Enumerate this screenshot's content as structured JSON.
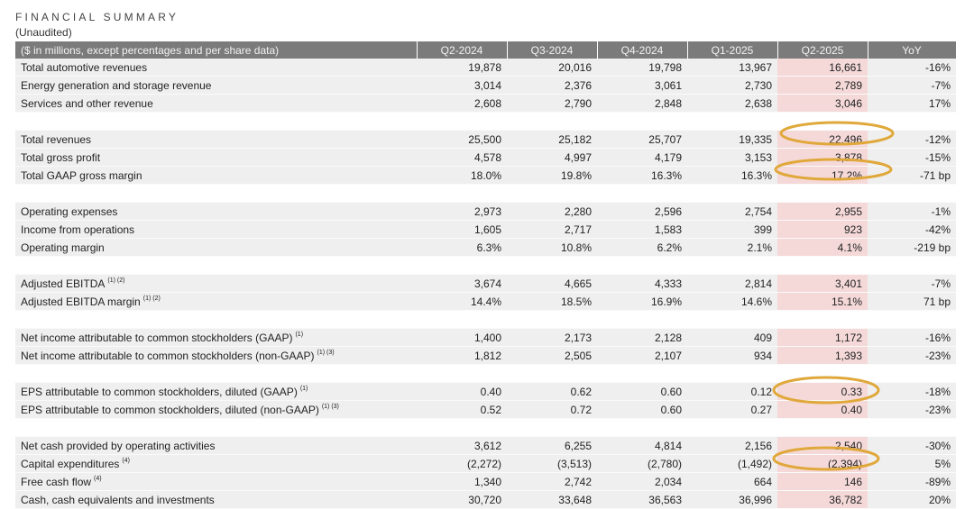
{
  "title": "FINANCIAL SUMMARY",
  "subtitle": "(Unaudited)",
  "header": [
    "($ in millions, except percentages and per share data)",
    "Q2-2024",
    "Q3-2024",
    "Q4-2024",
    "Q1-2025",
    "Q2-2025",
    "YoY"
  ],
  "highlight_color": "#f5d9d9",
  "annotation_color": "#e0a83a",
  "groups": [
    [
      {
        "label": "Total automotive revenues",
        "note": "",
        "values": [
          "19,878",
          "20,016",
          "19,798",
          "13,967",
          "16,661",
          "-16%"
        ]
      },
      {
        "label": "Energy generation and storage revenue",
        "note": "",
        "values": [
          "3,014",
          "2,376",
          "3,061",
          "2,730",
          "2,789",
          "-7%"
        ]
      },
      {
        "label": "Services and other revenue",
        "note": "",
        "values": [
          "2,608",
          "2,790",
          "2,848",
          "2,638",
          "3,046",
          "17%"
        ]
      }
    ],
    [
      {
        "label": "Total revenues",
        "note": "",
        "values": [
          "25,500",
          "25,182",
          "25,707",
          "19,335",
          "22,496",
          "-12%"
        ]
      },
      {
        "label": "Total gross profit",
        "note": "",
        "values": [
          "4,578",
          "4,997",
          "4,179",
          "3,153",
          "3,878",
          "-15%"
        ]
      },
      {
        "label": "Total GAAP gross margin",
        "note": "",
        "values": [
          "18.0%",
          "19.8%",
          "16.3%",
          "16.3%",
          "17.2%",
          "-71 bp"
        ]
      }
    ],
    [
      {
        "label": "Operating expenses",
        "note": "",
        "values": [
          "2,973",
          "2,280",
          "2,596",
          "2,754",
          "2,955",
          "-1%"
        ]
      },
      {
        "label": "Income from operations",
        "note": "",
        "values": [
          "1,605",
          "2,717",
          "1,583",
          "399",
          "923",
          "-42%"
        ]
      },
      {
        "label": "Operating margin",
        "note": "",
        "values": [
          "6.3%",
          "10.8%",
          "6.2%",
          "2.1%",
          "4.1%",
          "-219 bp"
        ]
      }
    ],
    [
      {
        "label": "Adjusted EBITDA",
        "note": "(1) (2)",
        "values": [
          "3,674",
          "4,665",
          "4,333",
          "2,814",
          "3,401",
          "-7%"
        ]
      },
      {
        "label": "Adjusted EBITDA margin",
        "note": "(1) (2)",
        "values": [
          "14.4%",
          "18.5%",
          "16.9%",
          "14.6%",
          "15.1%",
          "71 bp"
        ]
      }
    ],
    [
      {
        "label": "Net income attributable to common stockholders (GAAP)",
        "note": "(1)",
        "values": [
          "1,400",
          "2,173",
          "2,128",
          "409",
          "1,172",
          "-16%"
        ]
      },
      {
        "label": "Net income attributable to common stockholders (non-GAAP)",
        "note": "(1) (3)",
        "values": [
          "1,812",
          "2,505",
          "2,107",
          "934",
          "1,393",
          "-23%"
        ]
      }
    ],
    [
      {
        "label": "EPS attributable to common stockholders, diluted (GAAP)",
        "note": "(1)",
        "values": [
          "0.40",
          "0.62",
          "0.60",
          "0.12",
          "0.33",
          "-18%"
        ]
      },
      {
        "label": "EPS attributable to common stockholders, diluted (non-GAAP)",
        "note": "(1) (3)",
        "values": [
          "0.52",
          "0.72",
          "0.60",
          "0.27",
          "0.40",
          "-23%"
        ]
      }
    ],
    [
      {
        "label": "Net cash provided by operating activities",
        "note": "",
        "values": [
          "3,612",
          "6,255",
          "4,814",
          "2,156",
          "2,540",
          "-30%"
        ]
      },
      {
        "label": "Capital expenditures",
        "note": "(4)",
        "values": [
          "(2,272)",
          "(3,513)",
          "(2,780)",
          "(1,492)",
          "(2,394)",
          "5%"
        ]
      },
      {
        "label": "Free cash flow",
        "note": "(4)",
        "values": [
          "1,340",
          "2,742",
          "2,034",
          "664",
          "146",
          "-89%"
        ]
      },
      {
        "label": "Cash, cash equivalents and investments",
        "note": "",
        "values": [
          "30,720",
          "33,648",
          "36,563",
          "36,996",
          "36,782",
          "20%"
        ]
      }
    ]
  ]
}
